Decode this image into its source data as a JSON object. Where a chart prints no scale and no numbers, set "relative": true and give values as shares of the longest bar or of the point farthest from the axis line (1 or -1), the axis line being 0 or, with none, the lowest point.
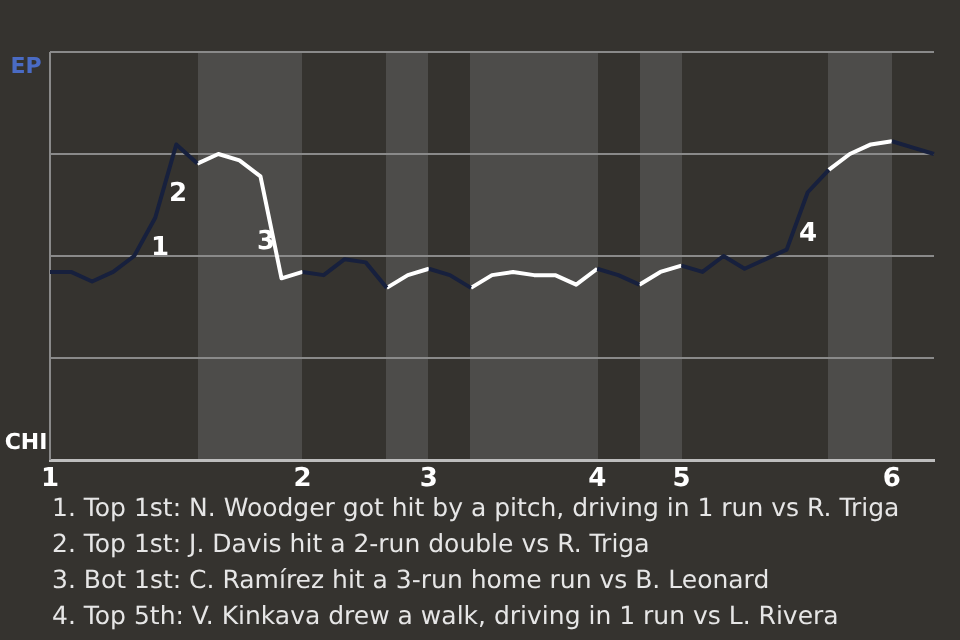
{
  "chart_data": {
    "type": "line",
    "categories": [
      "1",
      null,
      null,
      null,
      null,
      null,
      null,
      null,
      null,
      null,
      null,
      null,
      "2",
      null,
      null,
      null,
      null,
      null,
      "3",
      null,
      null,
      null,
      null,
      null,
      null,
      null,
      "4",
      null,
      null,
      null,
      "5",
      null,
      null,
      null,
      null,
      null,
      null,
      null,
      null,
      null,
      "6",
      null,
      null
    ],
    "series": [
      {
        "color": "#17203d",
        "values": [
          0.59,
          0.59,
          0.56,
          0.59,
          0.64,
          0.76,
          0.99,
          0.93,
          null,
          null,
          null,
          null,
          0.59,
          0.58,
          0.63,
          0.62,
          0.54,
          null,
          0.6,
          0.58,
          0.54,
          null,
          null,
          null,
          null,
          null,
          0.6,
          0.58,
          0.55,
          null,
          0.61,
          0.59,
          0.64,
          0.6,
          0.63,
          0.66,
          0.84,
          0.91,
          null,
          null,
          1,
          0.98,
          0.96
        ]
      },
      {
        "color": "#ffffff",
        "values": [
          null,
          null,
          null,
          null,
          null,
          null,
          null,
          0.93,
          0.96,
          0.94,
          0.89,
          0.57,
          0.59,
          null,
          null,
          null,
          0.54,
          0.58,
          0.6,
          null,
          0.54,
          0.58,
          0.59,
          0.58,
          0.58,
          0.55,
          0.6,
          null,
          0.55,
          0.59,
          0.61,
          null,
          null,
          null,
          null,
          null,
          null,
          0.91,
          0.96,
          0.99,
          1,
          null,
          null
        ]
      }
    ],
    "relative": true,
    "grid": "y",
    "annotations": [
      "EP",
      "CHI",
      "1",
      "2",
      "3",
      "4",
      "1. Top 1st: N. Woodger got hit by a pitch, driving in 1 run vs R. Triga",
      "2. Top 1st: J. Davis hit a 2-run double vs R. Triga",
      "3. Bot 1st: C. Ramírez hit a 3-run home run vs B. Leonard",
      "4. Top 5th: V. Kinkava drew a walk, driving in 1 run vs L. Rivera"
    ],
    "legend": false
  }
}
